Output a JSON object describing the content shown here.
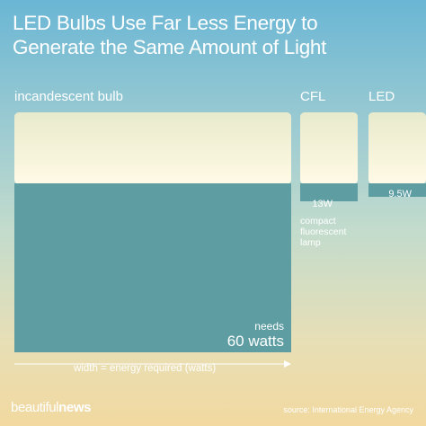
{
  "title_line1": "LED Bulbs Use Far Less Energy to",
  "title_line2": "Generate the Same Amount of Light",
  "chart_data": {
    "type": "bar",
    "title": "LED Bulbs Use Far Less Energy to Generate the Same Amount of Light",
    "xlabel": "width = energy required (watts)",
    "categories": [
      "incandescent bulb",
      "CFL",
      "LED"
    ],
    "values": [
      60,
      13,
      9.5
    ],
    "unit": "W",
    "value_labels": [
      "60 watts",
      "13W",
      "9.5W"
    ]
  },
  "labels": {
    "incandescent": "incandescent bulb",
    "cfl": "CFL",
    "led": "LED",
    "needs": "needs",
    "incandescent_value": "60 watts",
    "cfl_value": "13W",
    "led_value": "9.5W",
    "cfl_note": [
      "compact",
      "fluorescent",
      "lamp"
    ]
  },
  "axis_note": "width = energy required (watts)",
  "brand": {
    "part1": "beautiful",
    "part2": "news"
  },
  "source": "source: International Energy Agency",
  "colors": {
    "bar_fill": "#5e9ea3",
    "light_glow": "#fdf6d8",
    "text": "#ffffff"
  }
}
